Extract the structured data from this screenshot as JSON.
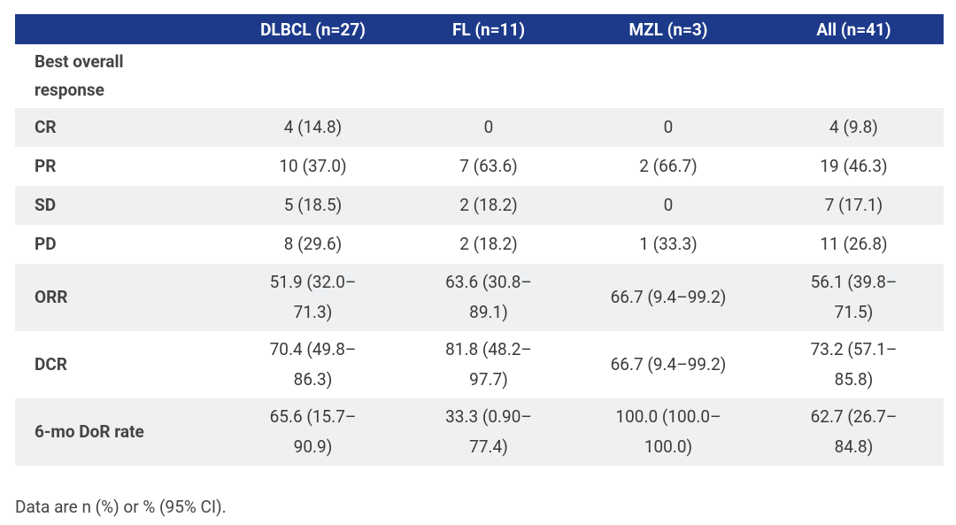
{
  "table": {
    "columns": [
      "",
      "DLBCL (n=27)",
      "FL (n=11)",
      "MZL (n=3)",
      "All (n=41)"
    ],
    "rows": [
      [
        "Best overall\nresponse",
        "",
        "",
        "",
        ""
      ],
      [
        "CR",
        "4 (14.8)",
        "0",
        "0",
        "4 (9.8)"
      ],
      [
        "PR",
        "10 (37.0)",
        "7 (63.6)",
        "2 (66.7)",
        "19 (46.3)"
      ],
      [
        "SD",
        "5 (18.5)",
        "2 (18.2)",
        "0",
        "7 (17.1)"
      ],
      [
        "PD",
        "8 (29.6)",
        "2 (18.2)",
        "1 (33.3)",
        "11 (26.8)"
      ],
      [
        "ORR",
        "51.9 (32.0–\n71.3)",
        "63.6 (30.8–\n89.1)",
        "66.7 (9.4–99.2)",
        "56.1 (39.8–\n71.5)"
      ],
      [
        "DCR",
        "70.4 (49.8–\n86.3)",
        "81.8 (48.2–\n97.7)",
        "66.7 (9.4–99.2)",
        "73.2 (57.1–\n85.8)"
      ],
      [
        "6-mo DoR rate",
        "65.6 (15.7–\n90.9)",
        "33.3 (0.90–\n77.4)",
        "100.0 (100.0–\n100.0)",
        "62.7 (26.7–\n84.8)"
      ]
    ]
  },
  "footnote": "Data are n (%) or % (95% CI)."
}
